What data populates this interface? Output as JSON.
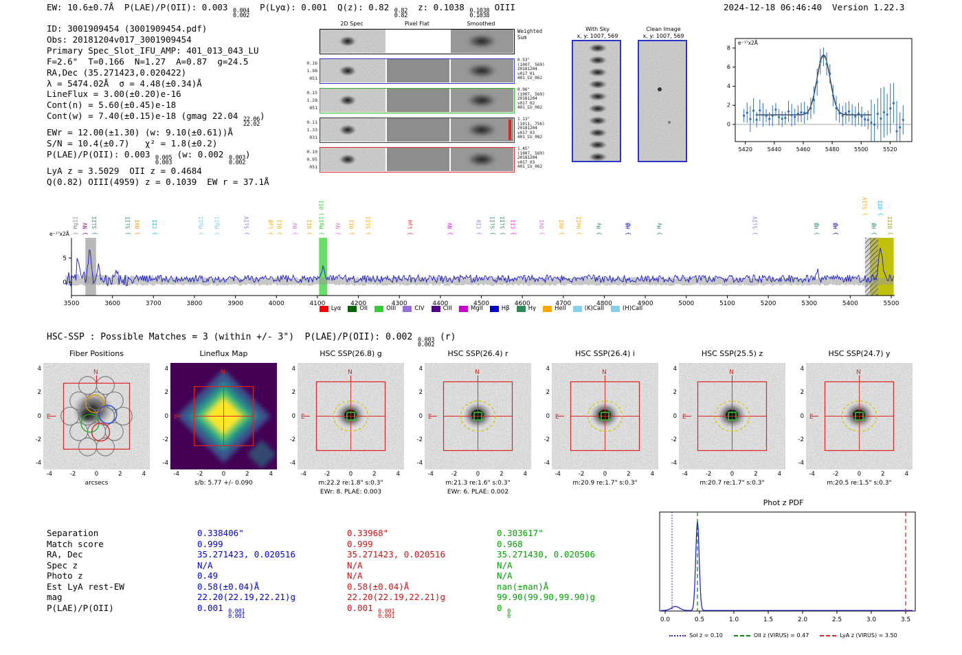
{
  "meta": {
    "header_right": "2024-12-18 06:46:40  Version 1.22.3"
  },
  "header": {
    "segments": [
      {
        "t": "EW: 10.6±0.7Å  P(LAE)/P(OII): 0.003 "
      },
      {
        "sup": "0.004",
        "sub": "0.002"
      },
      {
        "t": "  P(Lyα): 0.001  Q(z): 0.82 "
      },
      {
        "sup": "0.82",
        "sub": "0.82"
      },
      {
        "t": "  z: 0.1038 "
      },
      {
        "sup": "0.1038",
        "sub": "0.1038"
      },
      {
        "t": " OIII"
      }
    ]
  },
  "info_block": {
    "lines": [
      [
        {
          "t": "ID: 3001909454 (3001909454.pdf)"
        }
      ],
      [
        {
          "t": "Obs: 20181204v017_3001909454"
        }
      ],
      [
        {
          "t": "Primary Spec_Slot_IFU_AMP: 401_013_043_LU"
        }
      ],
      [
        {
          "t": "F=2.6\"  T=0.166  N=1.27  A=0.87  g=24.5"
        }
      ],
      [
        {
          "t": "RA,Dec (35.271423,0.020422)"
        }
      ],
      [
        {
          "t": "λ = 5474.02Å  σ = 4.48(±0.34)Å"
        }
      ],
      [
        {
          "t": "LineFlux = 3.00(±0.20)e-16"
        }
      ],
      [
        {
          "t": "Cont(n) = 5.60(±0.45)e-18"
        }
      ],
      [
        {
          "t": "Cont(w) = 7.40(±0.15)e-18 (gmag 22.04 "
        },
        {
          "sup": "22.06",
          "sub": "22.02"
        },
        {
          "t": ")"
        }
      ],
      [
        {
          "t": "EWr = 12.00(±1.30) (w: 9.10(±0.61))Å"
        }
      ],
      [
        {
          "t": "S/N = 10.4(±0.7)   χ² = 1.8(±0.2)"
        }
      ],
      [
        {
          "t": "P(LAE)/P(OII): 0.003 "
        },
        {
          "sup": "0.005",
          "sub": "0.003"
        },
        {
          "t": " (w: 0.002 "
        },
        {
          "sup": "0.003",
          "sub": "0.002"
        },
        {
          "t": ")"
        }
      ],
      [
        {
          "t": "LyA z = 3.5029  OII z = 0.4684"
        }
      ],
      [
        {
          "t": "Q(0.82) OIII(4959) z = 0.1039  EW r = 37.1Å"
        }
      ]
    ]
  },
  "twod_spec": {
    "col_titles": [
      "2D Spec",
      "Pixel Flat",
      "Smoothed"
    ],
    "rows": [
      {
        "left": [],
        "right": [
          "Weighted",
          "Sum"
        ],
        "border": "#000000"
      },
      {
        "left": [
          "0.16",
          "1.98",
          "051"
        ],
        "right": [
          "0.53\"",
          "(1007, 569)",
          "20181204",
          "v017_01",
          "401_LU_062"
        ],
        "border": "#2a35c8"
      },
      {
        "left": [
          "0.15",
          "1.28",
          "051"
        ],
        "right": [
          "0.96\"",
          "(1007, 569)",
          "20181204",
          "v017_02",
          "401_LU_062"
        ],
        "border": "#2db52d"
      },
      {
        "left": [
          "0.11",
          "1.33",
          "031"
        ],
        "right": [
          "1.13\"",
          "(1011, 756)",
          "20181204",
          "v017_03",
          "401_LU_082"
        ],
        "border": "#333333",
        "accent": "#e42222"
      },
      {
        "left": [
          "0.10",
          "0.95",
          "051"
        ],
        "right": [
          "1.45\"",
          "(1007, 569)",
          "20181204",
          "v017_03",
          "401_LU_062"
        ],
        "border": "#e42222"
      }
    ]
  },
  "sky_panels": [
    {
      "title": "With Sky",
      "subtitle": "x, y: 1007, 569"
    },
    {
      "title": "Clean Image",
      "subtitle": "x, y: 1007, 569"
    }
  ],
  "hsc_header": {
    "segments": [
      {
        "t": "HSC-SSP : Possible Matches = 3 (within +/- 3\")  P(LAE)/P(OII): 0.002 "
      },
      {
        "sup": "0.003",
        "sub": "0.002"
      },
      {
        "t": " (r)"
      }
    ]
  },
  "cutouts": {
    "y_ticks": [
      "4",
      "2",
      "0",
      "-2",
      "-4"
    ],
    "x_ticks": [
      "-4",
      "-2",
      "0",
      "2",
      "4"
    ],
    "compass": {
      "north": "N",
      "east": "E"
    },
    "panels": [
      {
        "type": "fiber",
        "title": "Fiber Positions",
        "xlabel": "arcsecs"
      },
      {
        "type": "flux",
        "title": "Lineflux Map",
        "sub1": "s/b: 5.77 +/- 0.090"
      },
      {
        "type": "hsc",
        "title": "HSC SSP(26.8) g",
        "sub1": "m:22.2 re:1.8\" s:0.3\"",
        "sub2": "EWr: 8. PLAE: 0.003"
      },
      {
        "type": "hsc",
        "title": "HSC SSP(26.4) r",
        "sub1": "m:21.3 re:1.6\" s:0.3\"",
        "sub2": "EWr: 6. PLAE: 0.002"
      },
      {
        "type": "hsc",
        "title": "HSC SSP(26.4) i",
        "sub1": "m:20.9 re:1.7\" s:0.3\""
      },
      {
        "type": "hsc",
        "title": "HSC SSP(25.5) z",
        "sub1": "m:20.7 re:1.7\" s:0.3\""
      },
      {
        "type": "hsc",
        "title": "HSC SSP(24.7) y",
        "sub1": "m:20.5 re:1.5\" s:0.3\""
      }
    ]
  },
  "match_table": {
    "row_labels": [
      "Separation",
      "Match score",
      "RA, Dec",
      "Spec z",
      "Photo z",
      "Est LyA rest-EW",
      "mag",
      "P(LAE)/P(OII)"
    ],
    "columns": [
      {
        "color": "#0000cc",
        "values": [
          [
            {
              "t": "0.338406\""
            }
          ],
          [
            {
              "t": "0.999"
            }
          ],
          [
            {
              "t": "35.271423, 0.020516"
            }
          ],
          [
            {
              "t": "N/A"
            }
          ],
          [
            {
              "t": "0.49"
            }
          ],
          [
            {
              "t": "0.58(±0.04)Å"
            }
          ],
          [
            {
              "t": "22.20(22.19,22.21)g"
            }
          ],
          [
            {
              "t": "0.001 "
            },
            {
              "sup": "0.001",
              "sub": "0.001"
            }
          ]
        ]
      },
      {
        "color": "#cc1111",
        "values": [
          [
            {
              "t": "0.33968\""
            }
          ],
          [
            {
              "t": "0.999"
            }
          ],
          [
            {
              "t": "35.271423, 0.020516"
            }
          ],
          [
            {
              "t": "N/A"
            }
          ],
          [
            {
              "t": "N/A"
            }
          ],
          [
            {
              "t": "0.58(±0.04)Å"
            }
          ],
          [
            {
              "t": "22.20(22.19,22.21)g"
            }
          ],
          [
            {
              "t": "0.001 "
            },
            {
              "sup": "0.001",
              "sub": "0.001"
            }
          ]
        ]
      },
      {
        "color": "#00a000",
        "values": [
          [
            {
              "t": "0.303617\""
            }
          ],
          [
            {
              "t": "0.968"
            }
          ],
          [
            {
              "t": "35.271430, 0.020506"
            }
          ],
          [
            {
              "t": "N/A"
            }
          ],
          [
            {
              "t": "N/A"
            }
          ],
          [
            {
              "t": "nan(±nan)Å"
            }
          ],
          [
            {
              "t": "99.90(99.90,99.90)g"
            }
          ],
          [
            {
              "t": "0 "
            },
            {
              "sup": "0",
              "sub": "0"
            }
          ]
        ]
      }
    ]
  },
  "chart_data": [
    {
      "id": "line_fit",
      "type": "line",
      "unit_label": "e⁻¹⁷x2Å",
      "xlim": [
        5413,
        5535
      ],
      "ylim": [
        -1.8,
        9
      ],
      "xticks": [
        5420,
        5440,
        5460,
        5480,
        5500,
        5520
      ],
      "yticks": [
        0,
        2,
        4,
        6,
        8
      ],
      "gaussian": {
        "center": 5474.02,
        "sigma": 4.48,
        "amplitude": 6.3,
        "baseline": 1.0
      },
      "series_note": "blue data points with error bars; dark gaussian fit curve; gray zero line"
    },
    {
      "id": "main_spectrum",
      "type": "line",
      "unit_label": "e⁻¹⁷x2Å",
      "xlim": [
        3500,
        5510
      ],
      "ylim": [
        -2.8,
        9.2
      ],
      "xticks": [
        3500,
        3600,
        3700,
        3800,
        3900,
        4000,
        4100,
        4200,
        4300,
        4400,
        4500,
        4600,
        4700,
        4800,
        4900,
        5000,
        5100,
        5200,
        5300,
        5400,
        5500
      ],
      "yticks": [
        0,
        5
      ],
      "baseline": 0.7,
      "features": [
        {
          "x": 3516,
          "sigma": 3,
          "h": 4.2
        },
        {
          "x": 3545,
          "sigma": 3.5,
          "h": 6.8
        },
        {
          "x": 3565,
          "sigma": 3,
          "h": 3.0
        },
        {
          "x": 3608,
          "sigma": 3,
          "h": 2.2
        },
        {
          "x": 4114,
          "sigma": 3.5,
          "h": 2.6
        },
        {
          "x": 5320,
          "sigma": 3,
          "h": 1.6
        },
        {
          "x": 5474,
          "sigma": 4.5,
          "h": 6.2
        }
      ],
      "bands": [
        {
          "x0": 3534,
          "x1": 3560,
          "color": "#b0b0b0",
          "opacity": 0.9,
          "name": "gray-band"
        },
        {
          "x0": 4104,
          "x1": 4124,
          "color": "#55dd55",
          "opacity": 0.9,
          "name": "oii-highlight-band"
        },
        {
          "x0": 5448,
          "x1": 5506,
          "color": "#bdbd00",
          "opacity": 0.95,
          "name": "detection-band"
        },
        {
          "x0": 5436,
          "x1": 5468,
          "color": "#aaaaaa",
          "opacity": 1,
          "hatch": true,
          "name": "hatch-band"
        }
      ],
      "emission_labels": [
        {
          "wl": 3514,
          "label": "MgII",
          "color": "#888888"
        },
        {
          "wl": 3538,
          "label": "NV",
          "color": "#8b008b"
        },
        {
          "wl": 3560,
          "label": "SiII",
          "color": "#2e8b57"
        },
        {
          "wl": 3642,
          "label": "SiII",
          "color": "#2e8b57"
        },
        {
          "wl": 3665,
          "label": "OVI",
          "color": "#ff8c00"
        },
        {
          "wl": 3708,
          "label": "CII",
          "color": "#00bfff"
        },
        {
          "wl": 3820,
          "label": "MgII",
          "color": "#87ceeb"
        },
        {
          "wl": 3860,
          "label": "MgII",
          "color": "#87ceeb"
        },
        {
          "wl": 3932,
          "label": "SiIV",
          "color": "#9370db"
        },
        {
          "wl": 3990,
          "label": "Lyβ",
          "color": "#ffa500"
        },
        {
          "wl": 4012,
          "label": "OII",
          "color": "#ffa500"
        },
        {
          "wl": 4050,
          "label": "NV",
          "color": "#da70d6"
        },
        {
          "wl": 4085,
          "label": "OII",
          "color": "#ffa500"
        },
        {
          "wl": 4114,
          "label": "MgII",
          "color": "#33cc33"
        },
        {
          "wl": 4114,
          "label": "OII",
          "color": "#33cc33",
          "top": true
        },
        {
          "wl": 4155,
          "label": "NV",
          "color": "#da70d6"
        },
        {
          "wl": 4188,
          "label": "OII",
          "color": "#ffa500"
        },
        {
          "wl": 4228,
          "label": "SiII",
          "color": "#ffa500"
        },
        {
          "wl": 4330,
          "label": "Lyα",
          "color": "#ff2222"
        },
        {
          "wl": 4428,
          "label": "NV",
          "color": "#ff00ff"
        },
        {
          "wl": 4498,
          "label": "CIV",
          "color": "#9370db"
        },
        {
          "wl": 4532,
          "label": "SiII",
          "color": "#2e8b57"
        },
        {
          "wl": 4556,
          "label": "SiII",
          "color": "#2e8b57"
        },
        {
          "wl": 4582,
          "label": "CII",
          "color": "#ff00ff"
        },
        {
          "wl": 4652,
          "label": "OVI",
          "color": "#da70d6"
        },
        {
          "wl": 4700,
          "label": "OVI",
          "color": "#ffa500"
        },
        {
          "wl": 4742,
          "label": "HeII",
          "color": "#ffa500"
        },
        {
          "wl": 4791,
          "label": "Hγ",
          "color": "#2e8b57"
        },
        {
          "wl": 4862,
          "label": "Hβ",
          "color": "#0000cd"
        },
        {
          "wl": 4938,
          "label": "Hγ",
          "color": "#2e8b57"
        },
        {
          "wl": 5172,
          "label": "SiIV",
          "color": "#9370db"
        },
        {
          "wl": 5322,
          "label": "Hβ",
          "color": "#2e8b57"
        },
        {
          "wl": 5368,
          "label": "Hβ",
          "color": "#0000cd"
        },
        {
          "wl": 5440,
          "label": "SiIV",
          "color": "#ffa500",
          "top": true
        },
        {
          "wl": 5478,
          "label": "OII",
          "color": "#00bfff",
          "top": true
        },
        {
          "wl": 5462,
          "label": "Hβ",
          "color": "#2e8b57"
        },
        {
          "wl": 5502,
          "label": "OIII",
          "color": "#999900"
        }
      ],
      "legend": [
        {
          "label": "Lyα",
          "color": "#ff0000"
        },
        {
          "label": "OII",
          "color": "#006400"
        },
        {
          "label": "OIII",
          "color": "#33cc33"
        },
        {
          "label": "CIV",
          "color": "#9370db"
        },
        {
          "label": "CIII",
          "color": "#4b0082"
        },
        {
          "label": "MgII",
          "color": "#cc00cc"
        },
        {
          "label": "Hβ",
          "color": "#0000cd"
        },
        {
          "label": "Hγ",
          "color": "#2e8b57"
        },
        {
          "label": "HeII",
          "color": "#ffa500"
        },
        {
          "label": "(K)CaII",
          "color": "#87ceeb"
        },
        {
          "label": "(H)CaII",
          "color": "#87ceeb"
        }
      ]
    },
    {
      "id": "photz_pdf",
      "type": "line",
      "title": "Phot z PDF",
      "xlim": [
        -0.08,
        3.64
      ],
      "xticks": [
        "0.0",
        "0.5",
        "1.0",
        "1.5",
        "2.0",
        "2.5",
        "3.0",
        "3.5"
      ],
      "peak": {
        "center": 0.47,
        "sigma": 0.025,
        "height": 1.0
      },
      "secondary_bump": {
        "center": 0.15,
        "sigma": 0.06,
        "height": 0.045
      },
      "vlines": [
        {
          "x": 0.1,
          "style": "dotted",
          "color": "#2222cc",
          "label": "Sol z = 0.10"
        },
        {
          "x": 0.47,
          "style": "dashed",
          "color": "#0a8a0a",
          "label": "OII z (VIRUS) = 0.47"
        },
        {
          "x": 3.5,
          "style": "dashed",
          "color": "#dd2222",
          "label": "LyA z (VIRUS) = 3.50"
        }
      ]
    }
  ]
}
